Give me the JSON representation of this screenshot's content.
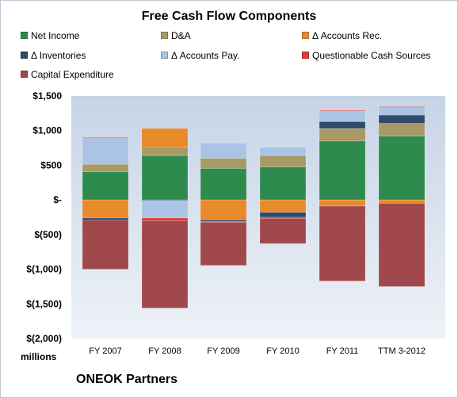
{
  "chart_data": {
    "type": "bar",
    "stacked": true,
    "title": "Free Cash Flow Components",
    "categories": [
      "FY 2007",
      "FY 2008",
      "FY 2009",
      "FY 2010",
      "FY 2011",
      "TTM 3-2012"
    ],
    "series": [
      {
        "name": "Net Income",
        "color": "#2e8b4e",
        "values": [
          405,
          640,
          455,
          475,
          850,
          920
        ]
      },
      {
        "name": "D&A",
        "color": "#a89a66",
        "values": [
          110,
          120,
          145,
          165,
          180,
          185
        ]
      },
      {
        "name": "Δ Accounts Rec.",
        "color": "#e88a2a",
        "values": [
          -260,
          270,
          -290,
          -180,
          -90,
          -50
        ]
      },
      {
        "name": "Δ Inventories",
        "color": "#2f4a6a",
        "values": [
          -30,
          -10,
          -20,
          -70,
          100,
          120
        ]
      },
      {
        "name": "Δ Accounts Pay.",
        "color": "#a9c4e4",
        "values": [
          375,
          -250,
          220,
          120,
          155,
          110
        ]
      },
      {
        "name": "Questionable Cash Sources",
        "color": "#e23a3a",
        "values": [
          10,
          -40,
          -15,
          -20,
          10,
          10
        ]
      },
      {
        "name": "Capital Expenditure",
        "color": "#a0484c",
        "values": [
          -710,
          -1260,
          -620,
          -360,
          -1080,
          -1200
        ]
      }
    ],
    "yticks": [
      "$1,500",
      "$1,000",
      "$500",
      "$-",
      "$(500)",
      "$(1,000)",
      "$(1,500)",
      "$(2,000)"
    ],
    "ylim": [
      -2000,
      1500
    ],
    "ylabel": "millions",
    "grid": false,
    "legend": "top",
    "footer": "ONEOK Partners"
  }
}
